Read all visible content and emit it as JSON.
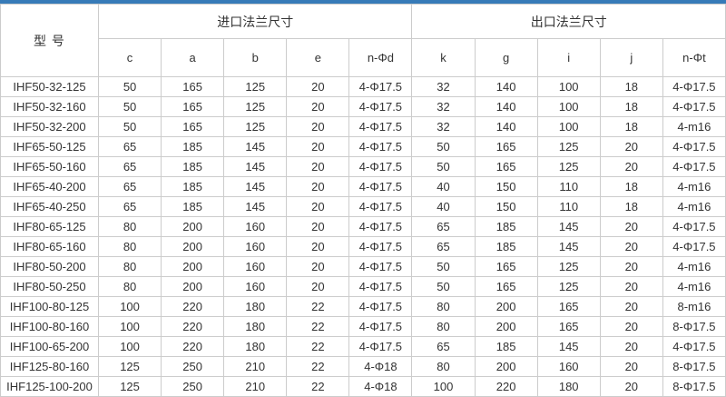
{
  "page": {
    "top_bar_color": "#377bb8",
    "border_color": "#cccccc",
    "text_color": "#333333",
    "background_color": "#ffffff"
  },
  "table": {
    "model_header": "型 号",
    "group_headers": [
      {
        "label": "进口法兰尺寸"
      },
      {
        "label": "出口法兰尺寸"
      }
    ],
    "sub_headers": [
      "c",
      "a",
      "b",
      "e",
      "n-Φd",
      "k",
      "g",
      "i",
      "j",
      "n-Φt"
    ],
    "rows": [
      {
        "model": "IHF50-32-125",
        "values": [
          "50",
          "165",
          "125",
          "20",
          "4-Φ17.5",
          "32",
          "140",
          "100",
          "18",
          "4-Φ17.5"
        ]
      },
      {
        "model": "IHF50-32-160",
        "values": [
          "50",
          "165",
          "125",
          "20",
          "4-Φ17.5",
          "32",
          "140",
          "100",
          "18",
          "4-Φ17.5"
        ]
      },
      {
        "model": "IHF50-32-200",
        "values": [
          "50",
          "165",
          "125",
          "20",
          "4-Φ17.5",
          "32",
          "140",
          "100",
          "18",
          "4-m16"
        ]
      },
      {
        "model": "IHF65-50-125",
        "values": [
          "65",
          "185",
          "145",
          "20",
          "4-Φ17.5",
          "50",
          "165",
          "125",
          "20",
          "4-Φ17.5"
        ]
      },
      {
        "model": "IHF65-50-160",
        "values": [
          "65",
          "185",
          "145",
          "20",
          "4-Φ17.5",
          "50",
          "165",
          "125",
          "20",
          "4-Φ17.5"
        ]
      },
      {
        "model": "IHF65-40-200",
        "values": [
          "65",
          "185",
          "145",
          "20",
          "4-Φ17.5",
          "40",
          "150",
          "110",
          "18",
          "4-m16"
        ]
      },
      {
        "model": "IHF65-40-250",
        "values": [
          "65",
          "185",
          "145",
          "20",
          "4-Φ17.5",
          "40",
          "150",
          "110",
          "18",
          "4-m16"
        ]
      },
      {
        "model": "IHF80-65-125",
        "values": [
          "80",
          "200",
          "160",
          "20",
          "4-Φ17.5",
          "65",
          "185",
          "145",
          "20",
          "4-Φ17.5"
        ]
      },
      {
        "model": "IHF80-65-160",
        "values": [
          "80",
          "200",
          "160",
          "20",
          "4-Φ17.5",
          "65",
          "185",
          "145",
          "20",
          "4-Φ17.5"
        ]
      },
      {
        "model": "IHF80-50-200",
        "values": [
          "80",
          "200",
          "160",
          "20",
          "4-Φ17.5",
          "50",
          "165",
          "125",
          "20",
          "4-m16"
        ]
      },
      {
        "model": "IHF80-50-250",
        "values": [
          "80",
          "200",
          "160",
          "20",
          "4-Φ17.5",
          "50",
          "165",
          "125",
          "20",
          "4-m16"
        ]
      },
      {
        "model": "IHF100-80-125",
        "values": [
          "100",
          "220",
          "180",
          "22",
          "4-Φ17.5",
          "80",
          "200",
          "165",
          "20",
          "8-m16"
        ]
      },
      {
        "model": "IHF100-80-160",
        "values": [
          "100",
          "220",
          "180",
          "22",
          "4-Φ17.5",
          "80",
          "200",
          "165",
          "20",
          "8-Φ17.5"
        ]
      },
      {
        "model": "IHF100-65-200",
        "values": [
          "100",
          "220",
          "180",
          "22",
          "4-Φ17.5",
          "65",
          "185",
          "145",
          "20",
          "4-Φ17.5"
        ]
      },
      {
        "model": "IHF125-80-160",
        "values": [
          "125",
          "250",
          "210",
          "22",
          "4-Φ18",
          "80",
          "200",
          "160",
          "20",
          "8-Φ17.5"
        ]
      },
      {
        "model": "IHF125-100-200",
        "values": [
          "125",
          "250",
          "210",
          "22",
          "4-Φ18",
          "100",
          "220",
          "180",
          "20",
          "8-Φ17.5"
        ]
      }
    ]
  },
  "chart_data": {
    "type": "table",
    "title": "",
    "columns": [
      "型号",
      "c",
      "a",
      "b",
      "e",
      "n-Φd",
      "k",
      "g",
      "i",
      "j",
      "n-Φt"
    ],
    "column_groups": [
      {
        "label": "进口法兰尺寸",
        "columns": [
          "c",
          "a",
          "b",
          "e",
          "n-Φd"
        ]
      },
      {
        "label": "出口法兰尺寸",
        "columns": [
          "k",
          "g",
          "i",
          "j",
          "n-Φt"
        ]
      }
    ],
    "rows": [
      [
        "IHF50-32-125",
        "50",
        "165",
        "125",
        "20",
        "4-Φ17.5",
        "32",
        "140",
        "100",
        "18",
        "4-Φ17.5"
      ],
      [
        "IHF50-32-160",
        "50",
        "165",
        "125",
        "20",
        "4-Φ17.5",
        "32",
        "140",
        "100",
        "18",
        "4-Φ17.5"
      ],
      [
        "IHF50-32-200",
        "50",
        "165",
        "125",
        "20",
        "4-Φ17.5",
        "32",
        "140",
        "100",
        "18",
        "4-m16"
      ],
      [
        "IHF65-50-125",
        "65",
        "185",
        "145",
        "20",
        "4-Φ17.5",
        "50",
        "165",
        "125",
        "20",
        "4-Φ17.5"
      ],
      [
        "IHF65-50-160",
        "65",
        "185",
        "145",
        "20",
        "4-Φ17.5",
        "50",
        "165",
        "125",
        "20",
        "4-Φ17.5"
      ],
      [
        "IHF65-40-200",
        "65",
        "185",
        "145",
        "20",
        "4-Φ17.5",
        "40",
        "150",
        "110",
        "18",
        "4-m16"
      ],
      [
        "IHF65-40-250",
        "65",
        "185",
        "145",
        "20",
        "4-Φ17.5",
        "40",
        "150",
        "110",
        "18",
        "4-m16"
      ],
      [
        "IHF80-65-125",
        "80",
        "200",
        "160",
        "20",
        "4-Φ17.5",
        "65",
        "185",
        "145",
        "20",
        "4-Φ17.5"
      ],
      [
        "IHF80-65-160",
        "80",
        "200",
        "160",
        "20",
        "4-Φ17.5",
        "65",
        "185",
        "145",
        "20",
        "4-Φ17.5"
      ],
      [
        "IHF80-50-200",
        "80",
        "200",
        "160",
        "20",
        "4-Φ17.5",
        "50",
        "165",
        "125",
        "20",
        "4-m16"
      ],
      [
        "IHF80-50-250",
        "80",
        "200",
        "160",
        "20",
        "4-Φ17.5",
        "50",
        "165",
        "125",
        "20",
        "4-m16"
      ],
      [
        "IHF100-80-125",
        "100",
        "220",
        "180",
        "22",
        "4-Φ17.5",
        "80",
        "200",
        "165",
        "20",
        "8-m16"
      ],
      [
        "IHF100-80-160",
        "100",
        "220",
        "180",
        "22",
        "4-Φ17.5",
        "80",
        "200",
        "165",
        "20",
        "8-Φ17.5"
      ],
      [
        "IHF100-65-200",
        "100",
        "220",
        "180",
        "22",
        "4-Φ17.5",
        "65",
        "185",
        "145",
        "20",
        "4-Φ17.5"
      ],
      [
        "IHF125-80-160",
        "125",
        "250",
        "210",
        "22",
        "4-Φ18",
        "80",
        "200",
        "160",
        "20",
        "8-Φ17.5"
      ],
      [
        "IHF125-100-200",
        "125",
        "250",
        "210",
        "22",
        "4-Φ18",
        "100",
        "220",
        "180",
        "20",
        "8-Φ17.5"
      ]
    ]
  }
}
